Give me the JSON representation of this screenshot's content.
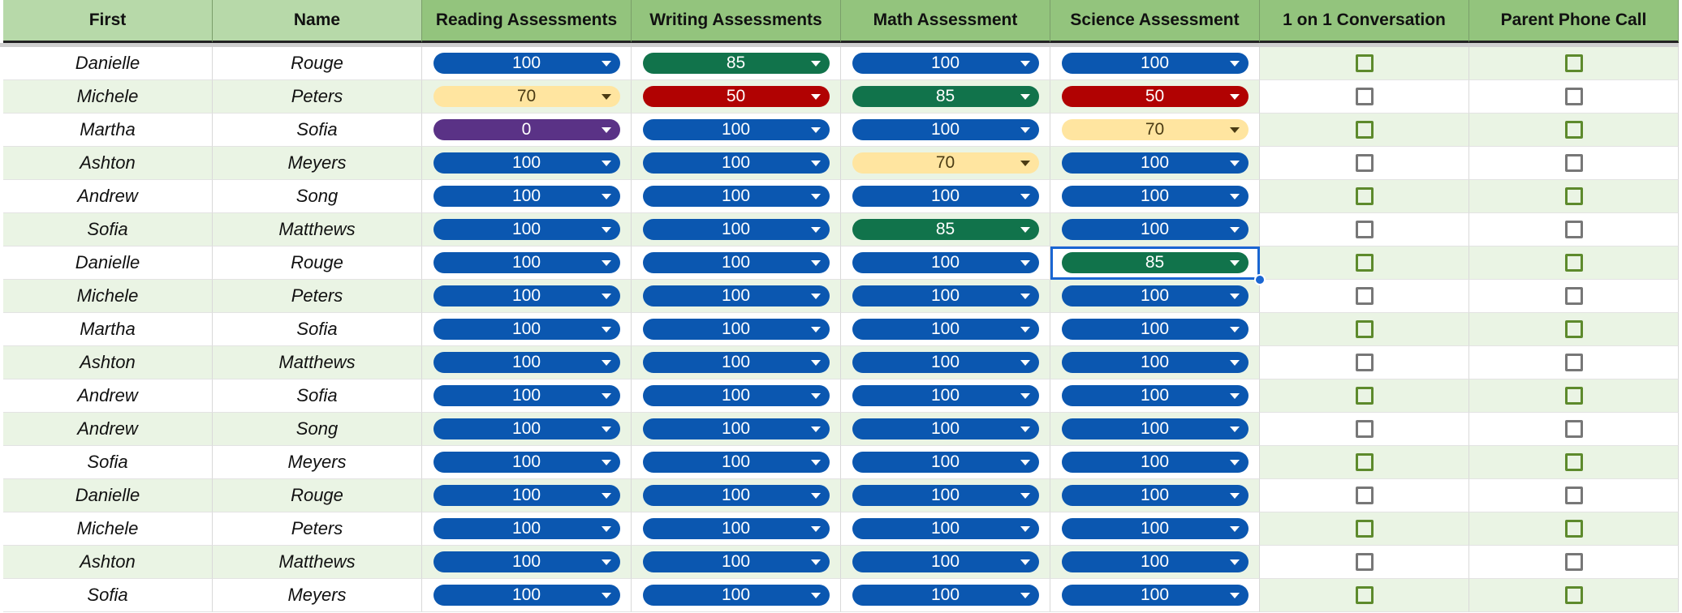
{
  "headers": [
    "First",
    "Name",
    "Reading Assessments",
    "Writing Assessments",
    "Math Assessment",
    "Science Assessment",
    "1 on 1 Conversation",
    "Parent Phone Call"
  ],
  "rows": [
    {
      "first": "Danielle",
      "name": "Rouge",
      "scores": [
        100,
        85,
        100,
        100
      ],
      "colors": [
        "#0b57b0",
        "#11734b",
        "#0b57b0",
        "#0b57b0"
      ],
      "checks": [
        false,
        false
      ]
    },
    {
      "first": "Michele",
      "name": "Peters",
      "scores": [
        70,
        50,
        85,
        50
      ],
      "colors": [
        "#ffe5a0",
        "#b10202",
        "#11734b",
        "#b10202"
      ],
      "checks": [
        false,
        false
      ]
    },
    {
      "first": "Martha",
      "name": "Sofia",
      "scores": [
        0,
        100,
        100,
        70
      ],
      "colors": [
        "#5a3286",
        "#0b57b0",
        "#0b57b0",
        "#ffe5a0"
      ],
      "checks": [
        false,
        false
      ]
    },
    {
      "first": "Ashton",
      "name": "Meyers",
      "scores": [
        100,
        100,
        70,
        100
      ],
      "colors": [
        "#0b57b0",
        "#0b57b0",
        "#ffe5a0",
        "#0b57b0"
      ],
      "checks": [
        false,
        false
      ]
    },
    {
      "first": "Andrew",
      "name": "Song",
      "scores": [
        100,
        100,
        100,
        100
      ],
      "colors": [
        "#0b57b0",
        "#0b57b0",
        "#0b57b0",
        "#0b57b0"
      ],
      "checks": [
        false,
        false
      ]
    },
    {
      "first": "Sofia",
      "name": "Matthews",
      "scores": [
        100,
        100,
        85,
        100
      ],
      "colors": [
        "#0b57b0",
        "#0b57b0",
        "#11734b",
        "#0b57b0"
      ],
      "checks": [
        false,
        false
      ]
    },
    {
      "first": "Danielle",
      "name": "Rouge",
      "scores": [
        100,
        100,
        100,
        85
      ],
      "colors": [
        "#0b57b0",
        "#0b57b0",
        "#0b57b0",
        "#11734b"
      ],
      "checks": [
        false,
        false
      ]
    },
    {
      "first": "Michele",
      "name": "Peters",
      "scores": [
        100,
        100,
        100,
        100
      ],
      "colors": [
        "#0b57b0",
        "#0b57b0",
        "#0b57b0",
        "#0b57b0"
      ],
      "checks": [
        false,
        false
      ]
    },
    {
      "first": "Martha",
      "name": "Sofia",
      "scores": [
        100,
        100,
        100,
        100
      ],
      "colors": [
        "#0b57b0",
        "#0b57b0",
        "#0b57b0",
        "#0b57b0"
      ],
      "checks": [
        false,
        false
      ]
    },
    {
      "first": "Ashton",
      "name": "Matthews",
      "scores": [
        100,
        100,
        100,
        100
      ],
      "colors": [
        "#0b57b0",
        "#0b57b0",
        "#0b57b0",
        "#0b57b0"
      ],
      "checks": [
        false,
        false
      ]
    },
    {
      "first": "Andrew",
      "name": "Sofia",
      "scores": [
        100,
        100,
        100,
        100
      ],
      "colors": [
        "#0b57b0",
        "#0b57b0",
        "#0b57b0",
        "#0b57b0"
      ],
      "checks": [
        false,
        false
      ]
    },
    {
      "first": "Andrew",
      "name": "Song",
      "scores": [
        100,
        100,
        100,
        100
      ],
      "colors": [
        "#0b57b0",
        "#0b57b0",
        "#0b57b0",
        "#0b57b0"
      ],
      "checks": [
        false,
        false
      ]
    },
    {
      "first": "Sofia",
      "name": "Meyers",
      "scores": [
        100,
        100,
        100,
        100
      ],
      "colors": [
        "#0b57b0",
        "#0b57b0",
        "#0b57b0",
        "#0b57b0"
      ],
      "checks": [
        false,
        false
      ]
    },
    {
      "first": "Danielle",
      "name": "Rouge",
      "scores": [
        100,
        100,
        100,
        100
      ],
      "colors": [
        "#0b57b0",
        "#0b57b0",
        "#0b57b0",
        "#0b57b0"
      ],
      "checks": [
        false,
        false
      ]
    },
    {
      "first": "Michele",
      "name": "Peters",
      "scores": [
        100,
        100,
        100,
        100
      ],
      "colors": [
        "#0b57b0",
        "#0b57b0",
        "#0b57b0",
        "#0b57b0"
      ],
      "checks": [
        false,
        false
      ]
    },
    {
      "first": "Ashton",
      "name": "Matthews",
      "scores": [
        100,
        100,
        100,
        100
      ],
      "colors": [
        "#0b57b0",
        "#0b57b0",
        "#0b57b0",
        "#0b57b0"
      ],
      "checks": [
        false,
        false
      ]
    },
    {
      "first": "Sofia",
      "name": "Meyers",
      "scores": [
        100,
        100,
        100,
        100
      ],
      "colors": [
        "#0b57b0",
        "#0b57b0",
        "#0b57b0",
        "#0b57b0"
      ],
      "checks": [
        false,
        false
      ]
    }
  ]
}
